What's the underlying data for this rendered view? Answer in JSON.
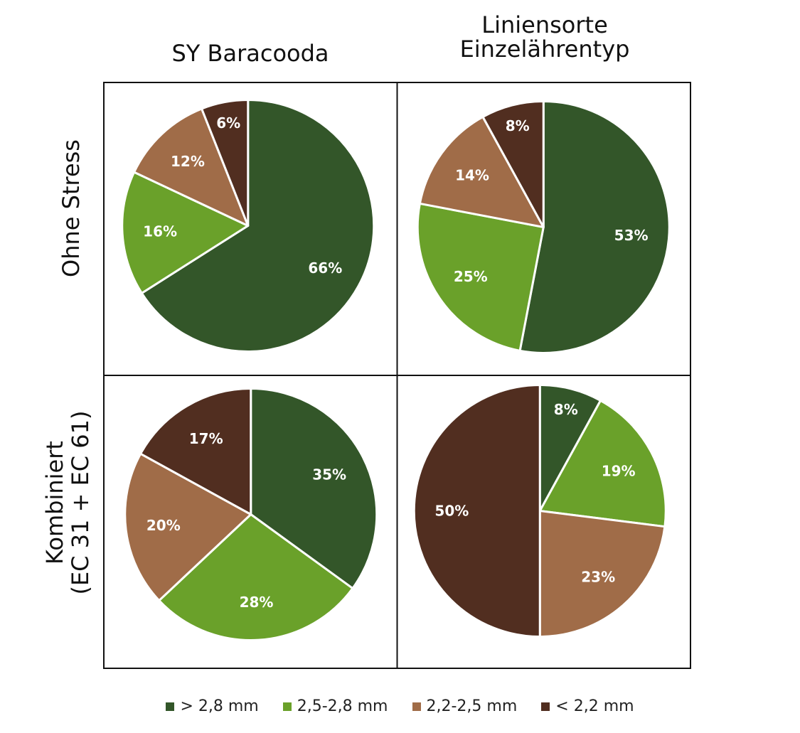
{
  "chart_data": {
    "type": "pie",
    "columns": [
      "SY Baracooda",
      "Liniensorte\nEinzelährentyp"
    ],
    "rows": [
      "Ohne Stress",
      "Kombiniert\n(EC 31 + EC 61)"
    ],
    "categories": [
      "> 2,8 mm",
      "2,5-2,8 mm",
      "2,2-2,5 mm",
      "< 2,2 mm"
    ],
    "colors": [
      "#335629",
      "#6aa12a",
      "#a06c48",
      "#512e20"
    ],
    "panels": [
      {
        "column": "SY Baracooda",
        "row": "Ohne Stress",
        "values": [
          66,
          16,
          12,
          6
        ],
        "labels": [
          "66%",
          "16%",
          "12%",
          "6%"
        ]
      },
      {
        "column": "Liniensorte Einzelährentyp",
        "row": "Ohne Stress",
        "values": [
          53,
          25,
          14,
          8
        ],
        "labels": [
          "53%",
          "25%",
          "14%",
          "8%"
        ]
      },
      {
        "column": "SY Baracooda",
        "row": "Kombiniert (EC 31 + EC 61)",
        "values": [
          35,
          28,
          20,
          17
        ],
        "labels": [
          "35%",
          "28%",
          "20%",
          "17%"
        ]
      },
      {
        "column": "Liniensorte Einzelährentyp",
        "row": "Kombiniert (EC 31 + EC 61)",
        "values": [
          8,
          19,
          23,
          50
        ],
        "labels": [
          "8%",
          "19%",
          "23%",
          "50%"
        ]
      }
    ]
  }
}
